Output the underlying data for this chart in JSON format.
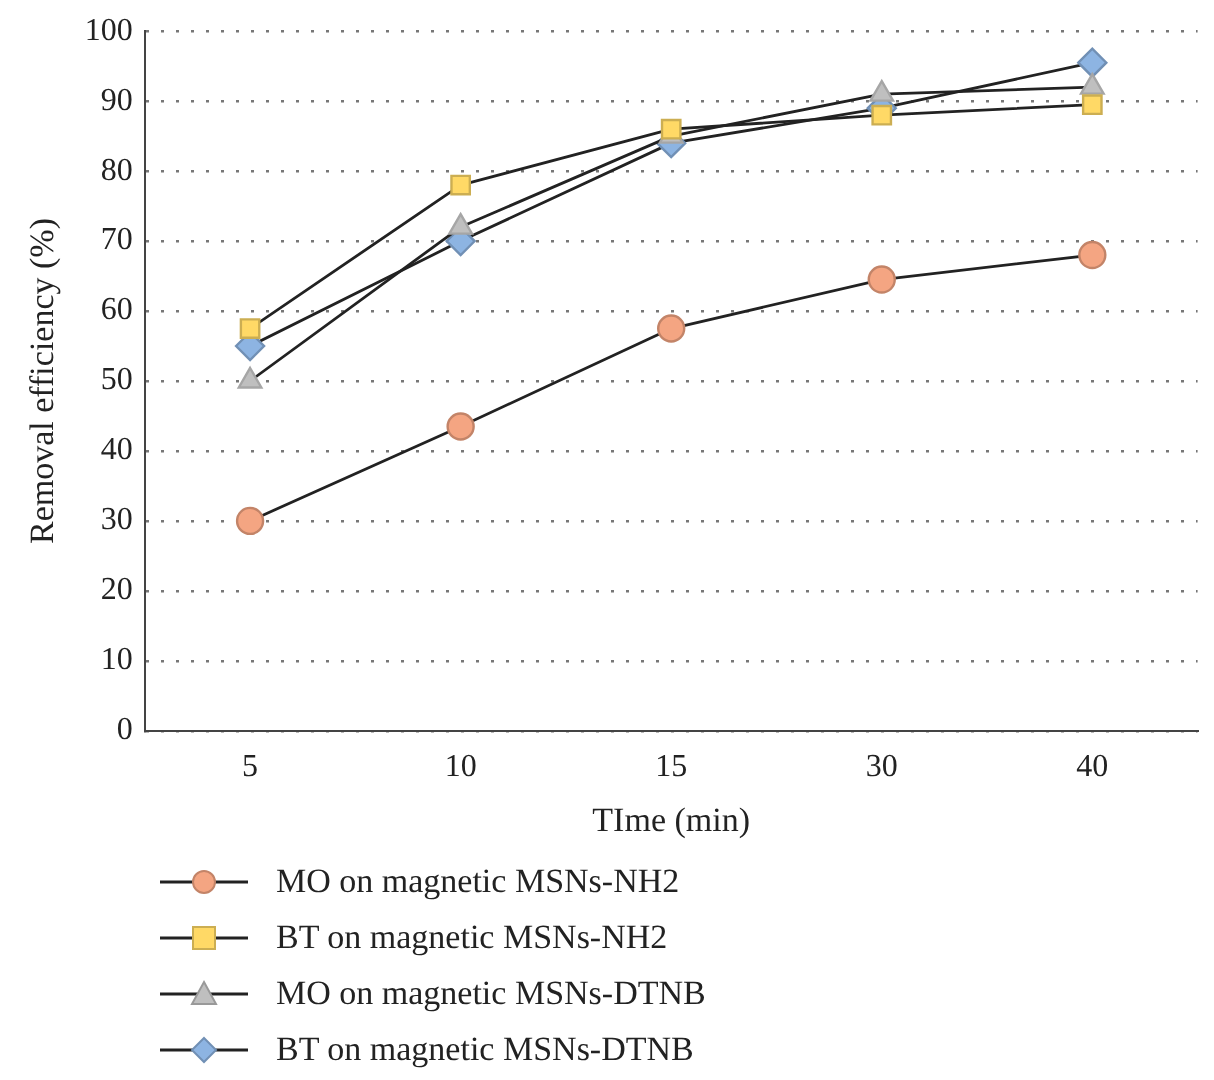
{
  "chart_data": {
    "type": "line",
    "xlabel": "TIme (min)",
    "ylabel": "Removal efficiency (%)",
    "categories": [
      "5",
      "10",
      "15",
      "30",
      "40"
    ],
    "series": [
      {
        "name": "MO on magnetic MSNs-NH2",
        "color": "#f4a582",
        "marker": "circle",
        "values": [
          30,
          43.5,
          57.5,
          64.5,
          68
        ]
      },
      {
        "name": "BT on magnetic MSNs-NH2",
        "color": "#ffd966",
        "marker": "square",
        "values": [
          57.5,
          78,
          86,
          88,
          89.5
        ]
      },
      {
        "name": "MO on magnetic MSNs-DTNB",
        "color": "#bfbfbf",
        "marker": "triangle",
        "values": [
          50,
          72,
          85,
          91,
          92
        ]
      },
      {
        "name": "BT on magnetic MSNs-DTNB",
        "color": "#8db4e2",
        "marker": "diamond",
        "values": [
          55,
          70,
          84,
          89,
          95.5
        ]
      }
    ],
    "ylim": [
      0,
      100
    ],
    "yticks": [
      0,
      10,
      20,
      30,
      40,
      50,
      60,
      70,
      80,
      90,
      100
    ],
    "grid": "y",
    "legend": "bottom",
    "line_style": "solid"
  }
}
